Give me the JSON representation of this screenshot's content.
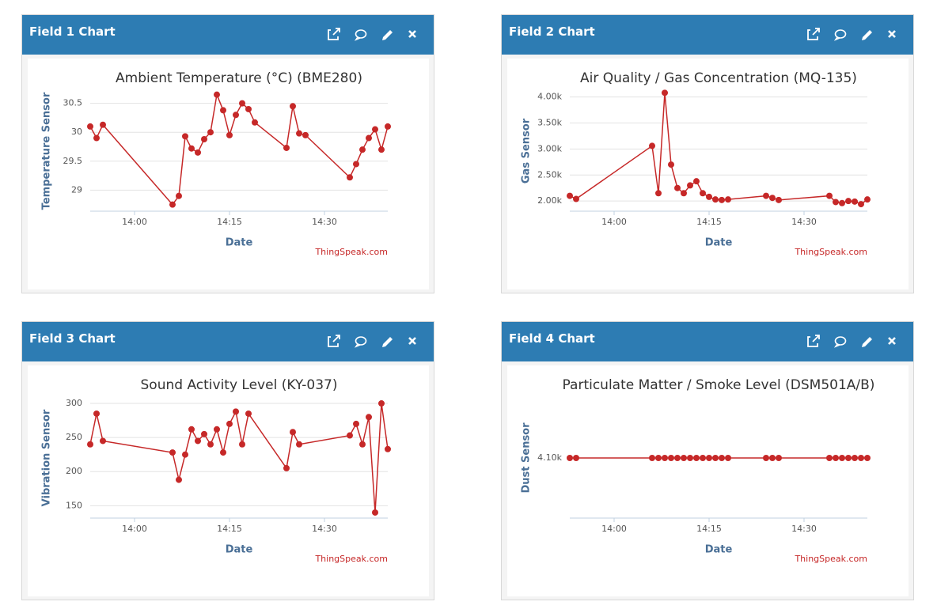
{
  "panels": [
    "Field 1 Chart",
    "Field 2 Chart",
    "Field 3 Chart",
    "Field 4 Chart"
  ],
  "chart_data": [
    {
      "type": "line",
      "title": "Ambient Temperature (°C) (BME280)",
      "xlabel": "Date",
      "ylabel": "Temperature Sensor",
      "credits": "ThingSpeak.com",
      "color": "#c62828",
      "grid": true,
      "x": [
        "13:53",
        "13:54",
        "13:55",
        "14:06",
        "14:07",
        "14:08",
        "14:09",
        "14:10",
        "14:11",
        "14:12",
        "14:13",
        "14:14",
        "14:15",
        "14:16",
        "14:17",
        "14:18",
        "14:19",
        "14:24",
        "14:25",
        "14:26",
        "14:27",
        "14:34",
        "14:35",
        "14:36",
        "14:37",
        "14:38",
        "14:39",
        "14:40"
      ],
      "values": [
        30.1,
        29.9,
        30.13,
        28.75,
        28.9,
        29.93,
        29.72,
        29.65,
        29.88,
        30.0,
        30.65,
        30.38,
        29.95,
        30.3,
        30.5,
        30.4,
        30.17,
        29.73,
        30.45,
        29.98,
        29.95,
        29.22,
        29.45,
        29.7,
        29.9,
        30.05,
        29.7,
        30.1
      ],
      "xlim": [
        "13:53",
        "14:40"
      ],
      "xticks": [
        "14:00",
        "14:15",
        "14:30"
      ],
      "ylim": [
        28.65,
        30.7
      ],
      "yticks": [
        29.0,
        29.5,
        30.0,
        30.5
      ]
    },
    {
      "type": "line",
      "title": "Air Quality / Gas Concentration (MQ-135)",
      "xlabel": "Date",
      "ylabel": "Gas Sensor",
      "credits": "ThingSpeak.com",
      "color": "#c62828",
      "grid": true,
      "x": [
        "13:53",
        "13:54",
        "14:06",
        "14:07",
        "14:08",
        "14:09",
        "14:10",
        "14:11",
        "14:12",
        "14:13",
        "14:14",
        "14:15",
        "14:16",
        "14:17",
        "14:18",
        "14:24",
        "14:25",
        "14:26",
        "14:34",
        "14:35",
        "14:36",
        "14:37",
        "14:38",
        "14:39",
        "14:40"
      ],
      "values": [
        2100,
        2040,
        3060,
        2150,
        4080,
        2700,
        2250,
        2150,
        2300,
        2380,
        2150,
        2080,
        2030,
        2020,
        2030,
        2100,
        2060,
        2020,
        2100,
        1980,
        1960,
        2000,
        1990,
        1940,
        2030
      ],
      "xlim": [
        "13:53",
        "14:40"
      ],
      "xticks": [
        "14:00",
        "14:15",
        "14:30"
      ],
      "ylim": [
        1820,
        4100
      ],
      "yticks": [
        {
          "value": 2000,
          "label": "2.00k"
        },
        {
          "value": 2500,
          "label": "2.50k"
        },
        {
          "value": 3000,
          "label": "3.00k"
        },
        {
          "value": 3500,
          "label": "3.50k"
        },
        {
          "value": 4000,
          "label": "4.00k"
        }
      ]
    },
    {
      "type": "line",
      "title": "Sound Activity Level (KY-037)",
      "xlabel": "Date",
      "ylabel": "Vibration Sensor",
      "credits": "ThingSpeak.com",
      "color": "#c62828",
      "grid": true,
      "x": [
        "13:53",
        "13:54",
        "13:55",
        "14:06",
        "14:07",
        "14:08",
        "14:09",
        "14:10",
        "14:11",
        "14:12",
        "14:13",
        "14:14",
        "14:15",
        "14:16",
        "14:17",
        "14:18",
        "14:24",
        "14:25",
        "14:26",
        "14:34",
        "14:35",
        "14:36",
        "14:37",
        "14:38",
        "14:39",
        "14:40"
      ],
      "values": [
        240,
        285,
        245,
        228,
        188,
        225,
        262,
        245,
        255,
        240,
        262,
        228,
        270,
        288,
        240,
        285,
        205,
        258,
        240,
        253,
        270,
        240,
        280,
        140,
        300,
        233
      ],
      "xlim": [
        "13:53",
        "14:40"
      ],
      "xticks": [
        "14:00",
        "14:15",
        "14:30"
      ],
      "ylim": [
        133,
        307
      ],
      "yticks": [
        150,
        200,
        250,
        300
      ]
    },
    {
      "type": "line",
      "title": "Particulate Matter / Smoke Level (DSM501A/B)",
      "xlabel": "Date",
      "ylabel": "Dust Sensor",
      "credits": "ThingSpeak.com",
      "color": "#c62828",
      "grid": true,
      "x": [
        "13:53",
        "13:54",
        "14:06",
        "14:07",
        "14:08",
        "14:09",
        "14:10",
        "14:11",
        "14:12",
        "14:13",
        "14:14",
        "14:15",
        "14:16",
        "14:17",
        "14:18",
        "14:24",
        "14:25",
        "14:26",
        "14:34",
        "14:35",
        "14:36",
        "14:37",
        "14:38",
        "14:39",
        "14:40"
      ],
      "values": [
        4100,
        4100,
        4100,
        4100,
        4100,
        4100,
        4100,
        4100,
        4100,
        4100,
        4100,
        4100,
        4100,
        4100,
        4100,
        4100,
        4100,
        4100,
        4100,
        4100,
        4100,
        4100,
        4100,
        4100,
        4100
      ],
      "xlim": [
        "13:53",
        "14:40"
      ],
      "xticks": [
        "14:00",
        "14:15",
        "14:30"
      ],
      "ylim": [
        3300,
        4900
      ],
      "yticks": [
        {
          "value": 4100,
          "label": "4.10k"
        }
      ]
    }
  ]
}
